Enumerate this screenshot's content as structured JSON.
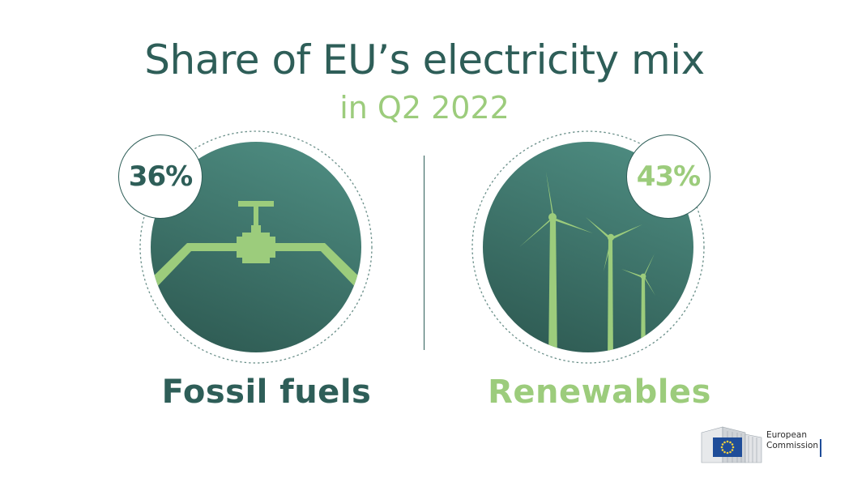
{
  "chart_data": {
    "type": "infographic",
    "title": "Share of EU’s electricity mix",
    "subtitle": "in Q2 2022",
    "series": [
      {
        "name": "Fossil fuels",
        "value_label": "36%",
        "value": 36,
        "color": "#2e5e58"
      },
      {
        "name": "Renewables",
        "value_label": "43%",
        "value": 43,
        "color": "#8dc26b"
      }
    ]
  },
  "colors": {
    "dark": "#2e5e58",
    "light": "#9ccc7c",
    "circle_top": "#4b8a7f",
    "circle_bottom": "#325f56"
  },
  "icons": {
    "left": "pipeline-valve-icon",
    "right": "wind-turbine-icon"
  },
  "logo": {
    "line1": "European",
    "line2": "Commission"
  }
}
